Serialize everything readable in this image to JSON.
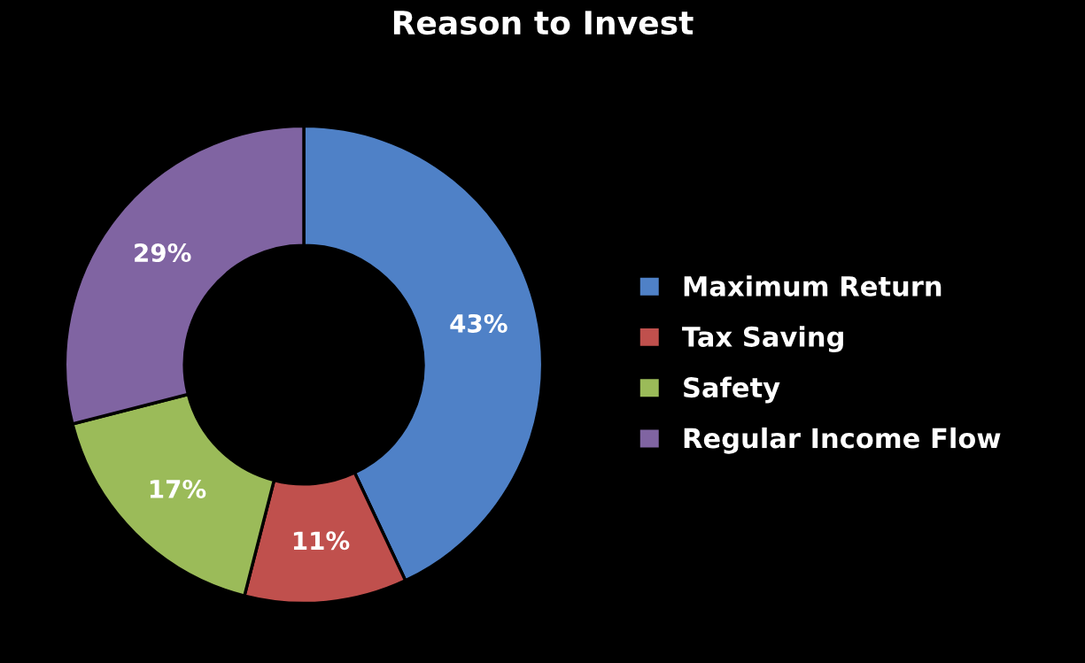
{
  "chart_data": {
    "type": "donut",
    "title": "Reason to Invest",
    "categories": [
      "Maximum Return",
      "Tax Saving",
      "Safety",
      "Regular Income Flow"
    ],
    "values": [
      43,
      11,
      17,
      29
    ],
    "value_labels": [
      "43%",
      "11%",
      "17%",
      "29%"
    ],
    "colors": [
      "#4f81c7",
      "#c0504d",
      "#9bbb59",
      "#8064a2"
    ],
    "legend": "right"
  }
}
